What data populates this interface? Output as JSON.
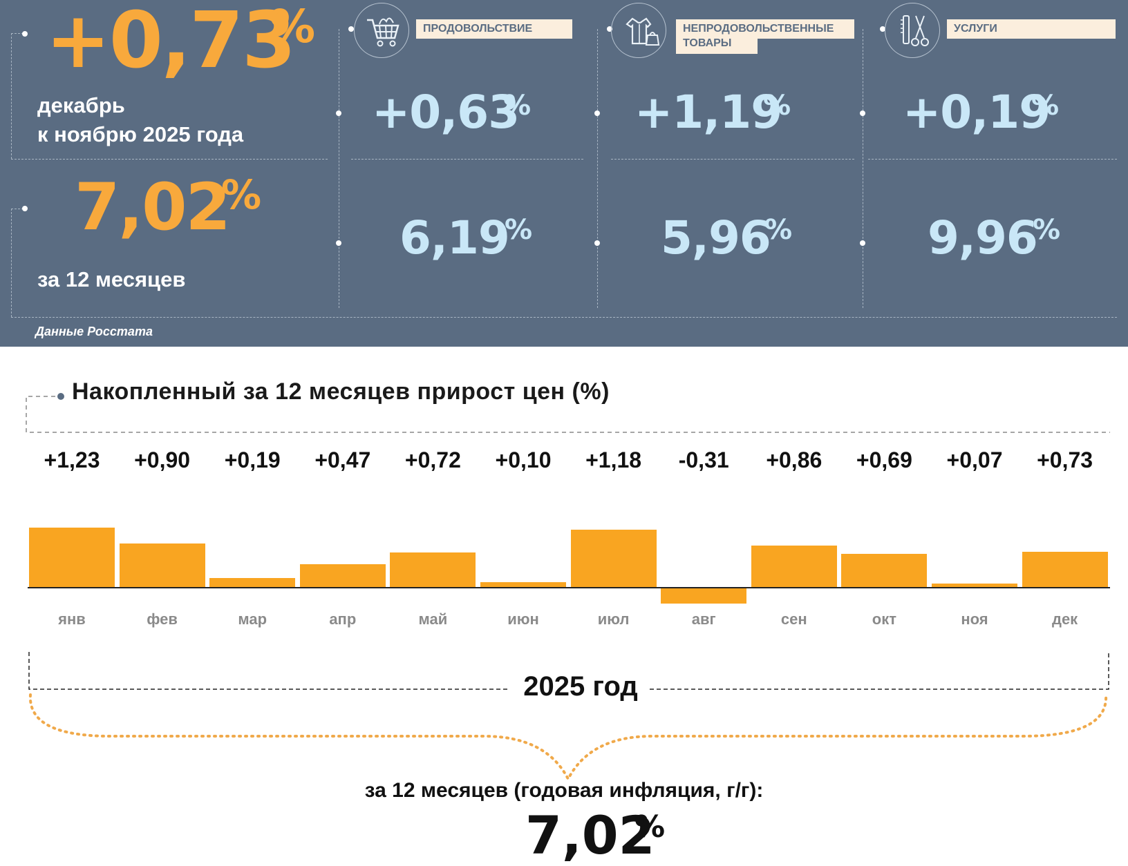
{
  "header": {
    "monthly": {
      "value": "+0,73",
      "unit": "%",
      "caption_line1": "декабрь",
      "caption_line2": "к ноябрю 2025 года"
    },
    "annual": {
      "value": "7,02",
      "unit": "%",
      "caption": "за 12 месяцев"
    },
    "source": "Данные Росстата",
    "categories": [
      {
        "icon": "shopping-cart-icon",
        "label": "ПРОДОВОЛЬСТВИЕ",
        "monthly": "+0,63",
        "annual": "6,19",
        "unit": "%"
      },
      {
        "icon": "clothing-bag-icon",
        "label_line1": "НЕПРОДОВОЛЬСТВЕННЫЕ",
        "label_line2": "ТОВАРЫ",
        "monthly": "+1,19",
        "annual": "5,96",
        "unit": "%"
      },
      {
        "icon": "comb-scissors-icon",
        "label": "УСЛУГИ",
        "monthly": "+0,19",
        "annual": "9,96",
        "unit": "%"
      }
    ],
    "colors": {
      "panel": "#5a6c82",
      "accent_orange": "#f8a93c",
      "value_blue": "#c9e7f7"
    }
  },
  "chart_data": {
    "type": "bar",
    "title": "Накопленный за 12 месяцев прирост цен (%)",
    "categories": [
      "янв",
      "фев",
      "мар",
      "апр",
      "май",
      "июн",
      "июл",
      "авг",
      "сен",
      "окт",
      "ноя",
      "дек"
    ],
    "values": [
      1.23,
      0.9,
      0.19,
      0.47,
      0.72,
      0.1,
      1.18,
      -0.31,
      0.86,
      0.69,
      0.07,
      0.73
    ],
    "value_labels": [
      "+1,23",
      "+0,90",
      "+0,19",
      "+0,47",
      "+0,72",
      "+0,10",
      "+1,18",
      "-0,31",
      "+0,86",
      "+0,69",
      "+0,07",
      "+0,73"
    ],
    "bar_color": "#f9a521",
    "period_label": "2025 год",
    "grid": false
  },
  "summary": {
    "caption": "за 12 месяцев (годовая инфляция, г/г):",
    "value": "7,02",
    "unit": "%"
  }
}
